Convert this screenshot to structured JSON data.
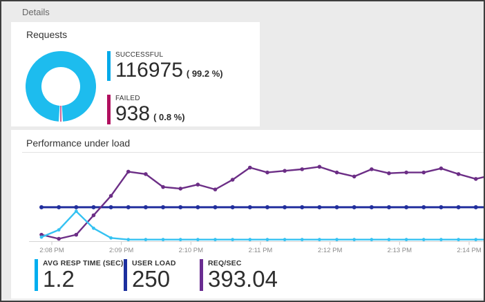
{
  "colors": {
    "background": "#ebebeb",
    "card": "#ffffff",
    "frame_border": "#3e3e3e",
    "header_text": "#666666",
    "title_text": "#333333",
    "axis_text": "#8a8a8a",
    "axis_line": "#d4d4d4",
    "divider": "#e2e2e2",
    "success_cyan": "#00a9e9",
    "donut_cyan": "#1dbcee",
    "failed_magenta": "#b1105f",
    "user_load_navy": "#222f9d",
    "req_sec_purple": "#6c2e86",
    "resp_time_cyan": "#35c2f2"
  },
  "header": {
    "title": "Details"
  },
  "requests_card": {
    "title": "Requests",
    "legend": [
      {
        "label": "SUCCESSFUL",
        "value": "116975",
        "percent_text": "( 99.2 %)",
        "color": "#00a9e9"
      },
      {
        "label": "FAILED",
        "value": "938",
        "percent_text": "( 0.8 %)",
        "color": "#b1105f"
      }
    ]
  },
  "performance_card": {
    "title": "Performance under load",
    "stats": [
      {
        "label": "AVG RESP TIME (SEC)",
        "value": "1.2",
        "color": "#00aeef"
      },
      {
        "label": "USER LOAD",
        "value": "250",
        "color": "#1c2f9e"
      },
      {
        "label": "REQ/SEC",
        "value": "393.04",
        "color": "#6a2d91"
      }
    ]
  },
  "chart_data": [
    {
      "type": "pie",
      "subtype": "donut",
      "title": "Requests",
      "slices": [
        {
          "label": "SUCCESSFUL",
          "value": 116975,
          "percent": 99.2,
          "color": "#1dbcee"
        },
        {
          "label": "FAILED",
          "value": 938,
          "percent": 0.8,
          "color": "#b1105f"
        }
      ]
    },
    {
      "type": "line",
      "title": "Performance under load",
      "x_tick_labels": [
        "2:08 PM",
        "2:09 PM",
        "2:10 PM",
        "2:11 PM",
        "2:12 PM",
        "2:13 PM",
        "2:14 PM"
      ],
      "sample_interval_seconds": 15,
      "y_axis_labels_visible": false,
      "note": "no y-axis scale shown; series values stored as percent of plot height above baseline",
      "series": [
        {
          "name": "USER LOAD",
          "color": "#222f9d",
          "current_value": 250,
          "values_pct_height": [
            42,
            42,
            42,
            42,
            42,
            42,
            42,
            42,
            42,
            42,
            42,
            42,
            42,
            42,
            42,
            42,
            42,
            42,
            42,
            42,
            42,
            42,
            42,
            42,
            42,
            42,
            42
          ]
        },
        {
          "name": "REQ/SEC",
          "color": "#6c2e86",
          "current_value": 393.04,
          "values_pct_height": [
            8,
            3,
            8,
            32,
            56,
            86,
            83,
            67,
            65,
            70,
            64,
            76,
            91,
            85,
            87,
            89,
            92,
            85,
            80,
            89,
            84,
            85,
            85,
            90,
            83,
            77,
            82
          ]
        },
        {
          "name": "AVG RESP TIME (SEC)",
          "color": "#35c2f2",
          "current_value": 1.2,
          "values_pct_height": [
            5,
            14,
            37,
            16,
            4,
            2,
            2,
            2,
            2,
            2,
            2,
            2,
            2,
            2,
            2,
            2,
            2,
            2,
            2,
            2,
            2,
            2,
            2,
            2,
            2,
            2,
            2
          ]
        }
      ]
    }
  ]
}
